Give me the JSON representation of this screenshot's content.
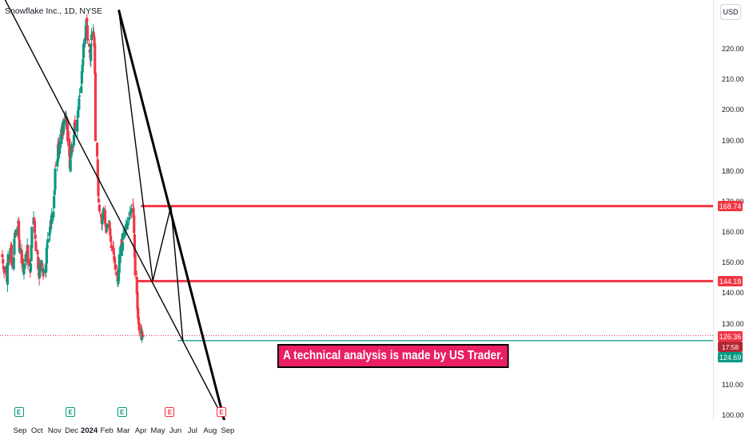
{
  "header": {
    "title": "Snowflake Inc., 1D, NYSE",
    "currency_button": "USD"
  },
  "chart_data": {
    "type": "candlestick",
    "symbol": "Snowflake Inc.",
    "interval": "1D",
    "exchange": "NYSE",
    "ylim": [
      98.5,
      233
    ],
    "y_ticks": [
      "220.00",
      "210.00",
      "200.00",
      "190.00",
      "180.00",
      "170.00",
      "160.00",
      "150.00",
      "140.00",
      "130.00",
      "110.00",
      "100.00"
    ],
    "x_ticks": [
      "Sep",
      "Oct",
      "Nov",
      "Dec",
      "2024",
      "Feb",
      "Mar",
      "Apr",
      "May",
      "Jun",
      "Jul",
      "Aug",
      "Sep"
    ],
    "price_labels": {
      "resistance_high": "168.74",
      "resistance_mid": "144.18",
      "last_price": "126.36",
      "countdown": "17:58",
      "support_low": "124.69"
    },
    "horizontal_levels": [
      {
        "price": 168.74,
        "color": "#f23645",
        "from": "2024-04-01"
      },
      {
        "price": 144.18,
        "color": "#f23645",
        "from": "2024-03-26"
      },
      {
        "price": 124.69,
        "color": "#089981",
        "from": "2024-06-05"
      },
      {
        "price": 126.36,
        "color": "#f23645",
        "style": "dotted",
        "from": "2023-08-01"
      }
    ],
    "trend_lines": [
      {
        "from": [
          "2023-08-01",
          238
        ],
        "to": [
          "2024-08-26",
          98.5
        ],
        "width": 1.4
      },
      {
        "from": [
          "2024-02-22",
          233
        ],
        "to": [
          "2024-08-26",
          98.5
        ],
        "width": 3
      },
      {
        "from": [
          "2024-02-22",
          233
        ],
        "to": [
          "2024-04-22",
          144.3
        ],
        "width": 1.4
      },
      {
        "from": [
          "2024-04-22",
          144.3
        ],
        "to": [
          "2024-05-24",
          168.7
        ],
        "width": 1.4
      },
      {
        "from": [
          "2024-05-24",
          168.7
        ],
        "to": [
          "2024-06-14",
          124.6
        ],
        "width": 1.4
      }
    ],
    "earnings_markers": [
      {
        "date": "2023-08-30",
        "color": "green",
        "label": "E"
      },
      {
        "date": "2023-11-29",
        "color": "green",
        "label": "E"
      },
      {
        "date": "2024-02-28",
        "color": "green",
        "label": "E"
      },
      {
        "date": "2024-05-22",
        "color": "red",
        "label": "E"
      },
      {
        "date": "2024-08-21",
        "color": "red",
        "label": "E"
      }
    ],
    "annotation": "A  technical analysis is made by US Trader.",
    "series": [
      {
        "start": "2023-08-01",
        "close": [
          152,
          150,
          148,
          147,
          149,
          146,
          144,
          150,
          153,
          151,
          155,
          156,
          150,
          149,
          152,
          158,
          160,
          159,
          161,
          162,
          164,
          158,
          154,
          155,
          150,
          151,
          149,
          147,
          150,
          153,
          152,
          154,
          156,
          150,
          149,
          147,
          150,
          156,
          162,
          165,
          164,
          160,
          158,
          154,
          153,
          148,
          146,
          145,
          150,
          151,
          149,
          147,
          146,
          148,
          147,
          150,
          155,
          156,
          158,
          160,
          162,
          164,
          163,
          166,
          167,
          172,
          174,
          181,
          182,
          184,
          189,
          188,
          186,
          190,
          194,
          195,
          196,
          192,
          197,
          199,
          196,
          198,
          197,
          190,
          185,
          181,
          184,
          186,
          189,
          188,
          192,
          196,
          195,
          194,
          197,
          200,
          201,
          204,
          205,
          208,
          213,
          215,
          217,
          222,
          224,
          228,
          230,
          229,
          223,
          221,
          219,
          217,
          222,
          225,
          226,
          224,
          221,
          212,
          190,
          185,
          178,
          172,
          170,
          167,
          165,
          163,
          164,
          166,
          168,
          163,
          162,
          160,
          161,
          163,
          164,
          161,
          159,
          157,
          155,
          154,
          153,
          151,
          150,
          148,
          146,
          144,
          145,
          148,
          153,
          156,
          158,
          155,
          157,
          160,
          161,
          162,
          163,
          162,
          164,
          165,
          166,
          167,
          166,
          168,
          169,
          165,
          160,
          152,
          146,
          140,
          135,
          132,
          130,
          128,
          127,
          125,
          128,
          127,
          126
        ]
      }
    ]
  }
}
